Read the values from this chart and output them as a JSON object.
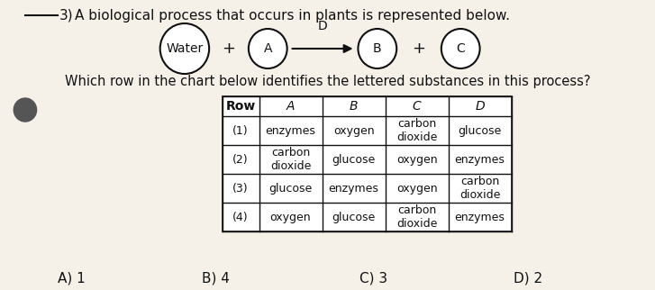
{
  "question_number": "3)",
  "question_text": "A biological process that occurs in plants is represented below.",
  "equation_label_top": "D",
  "equation": [
    "Water",
    "+",
    "A",
    "→",
    "B",
    "+",
    "C"
  ],
  "table_question": "Which row in the chart below identifies the lettered substances in this process?",
  "table_headers": [
    "Row",
    "A",
    "B",
    "C",
    "D"
  ],
  "table_rows": [
    [
      "(1)",
      "enzymes",
      "oxygen",
      "carbon\ndioxide",
      "glucose"
    ],
    [
      "(2)",
      "carbon\ndioxide",
      "glucose",
      "oxygen",
      "enzymes"
    ],
    [
      "(3)",
      "glucose",
      "enzymes",
      "oxygen",
      "carbon\ndioxide"
    ],
    [
      "(4)",
      "oxygen",
      "glucose",
      "carbon\ndioxide",
      "enzymes"
    ]
  ],
  "answer_choices": [
    "A) 1",
    "B) 4",
    "C) 3",
    "D) 2"
  ],
  "bg_color": "#f5f0e8",
  "text_color": "#111111",
  "table_bg": "#ffffff",
  "circle_color": "#ffffff",
  "number_line_color": "#111111"
}
